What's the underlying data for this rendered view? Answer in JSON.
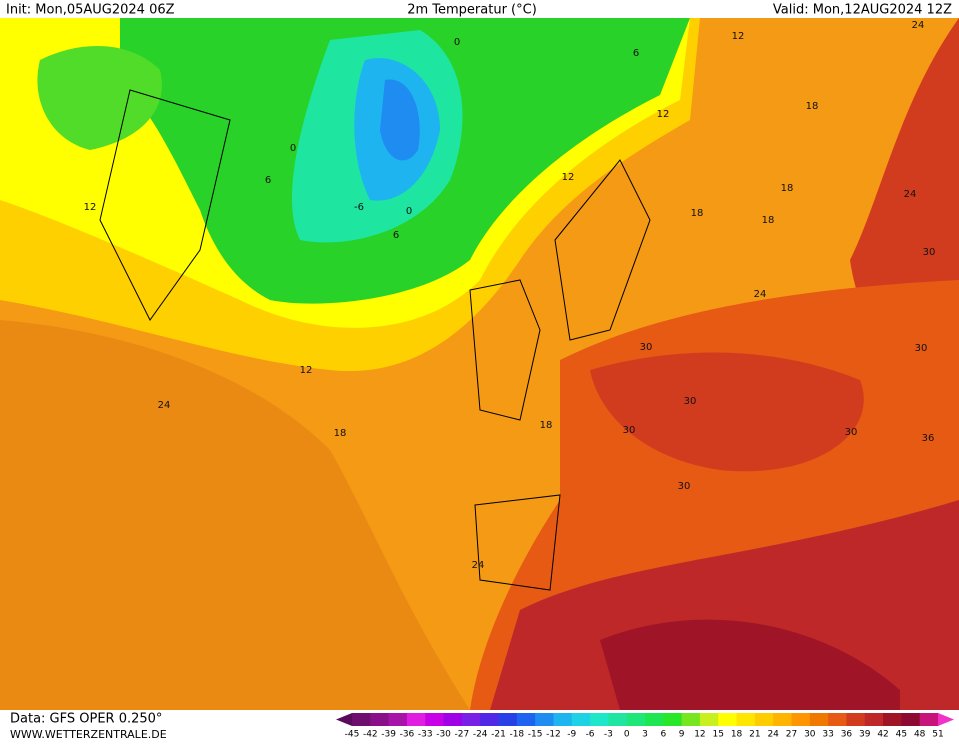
{
  "header": {
    "init": "Init: Mon,05AUG2024 06Z",
    "title": "2m Temperatur (°C)",
    "valid": "Valid: Mon,12AUG2024 12Z"
  },
  "map": {
    "contour_labels": [
      "0",
      "6",
      "12",
      "24",
      "0",
      "6",
      "-6",
      "0",
      "6",
      "12",
      "12",
      "12",
      "18",
      "18",
      "18",
      "18",
      "24",
      "30",
      "24",
      "30",
      "30",
      "12",
      "24",
      "18",
      "18",
      "30",
      "30",
      "30",
      "30",
      "24",
      "36"
    ]
  },
  "footer": {
    "data": "Data: GFS OPER 0.250°",
    "site": "WWW.WETTERZENTRALE.DE"
  },
  "colorbar": {
    "ticks": [
      -45,
      -42,
      -39,
      -36,
      -33,
      -30,
      -27,
      -24,
      -21,
      -18,
      -15,
      -12,
      -9,
      -6,
      -3,
      0,
      3,
      6,
      9,
      12,
      15,
      18,
      21,
      24,
      27,
      30,
      33,
      36,
      39,
      42,
      45,
      48,
      51
    ],
    "colors": [
      "#5a0a5a",
      "#6e0f6e",
      "#8a108a",
      "#a814a8",
      "#e01ee0",
      "#c800e6",
      "#a000e6",
      "#7820e6",
      "#5028e6",
      "#2840e6",
      "#1e64f0",
      "#1e8cf0",
      "#1eb4f0",
      "#1ed2e6",
      "#1ee6c8",
      "#1ee6a0",
      "#1ee678",
      "#1ee650",
      "#28e628",
      "#78e61e",
      "#c8f01e",
      "#ffff00",
      "#ffe600",
      "#ffcc00",
      "#ffb400",
      "#ff9600",
      "#f07800",
      "#e65a14",
      "#d23c1e",
      "#be2828",
      "#a01428",
      "#8c0a32",
      "#c8147a",
      "#f032c8"
    ]
  }
}
